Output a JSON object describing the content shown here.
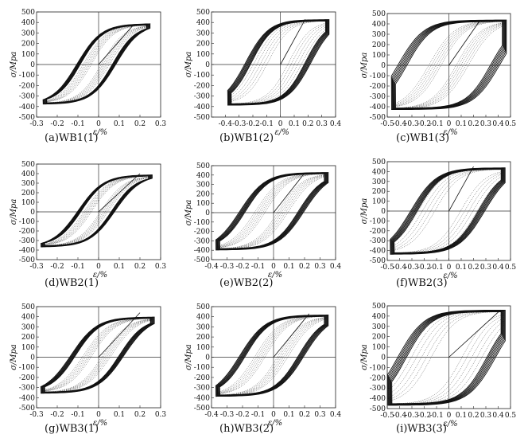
{
  "chart_data": [
    {
      "type": "line",
      "caption": "(a)WB1(1)",
      "xlabel": "ε/%",
      "ylabel": "σ/Mpa",
      "xlim": [
        -0.3,
        0.3
      ],
      "ylim": [
        -500,
        500
      ],
      "xticks": [
        -0.3,
        -0.2,
        -0.1,
        0,
        0.1,
        0.2,
        0.3
      ],
      "xtick_labels": [
        "-0.3",
        "-0.2",
        "-0.1",
        "0",
        "0.1",
        "0.2",
        "0.3"
      ],
      "yticks": [
        -500,
        -400,
        -300,
        -200,
        -100,
        0,
        100,
        200,
        300,
        400,
        500
      ],
      "ytick_labels": [
        "-500",
        "-400",
        "-300",
        "-200",
        "-100",
        "0",
        "100",
        "200",
        "300",
        "400",
        "500"
      ],
      "loop": {
        "xmin": -0.26,
        "xmax": 0.24,
        "ymin": -370,
        "ymax": 380,
        "width": 0.35
      },
      "skeleton": [
        [
          0,
          0
        ],
        [
          0.17,
          380
        ]
      ],
      "dotted_loop": {
        "width": 0.25
      }
    },
    {
      "type": "line",
      "caption": "(b)WB1(2)",
      "xlabel": "ε/%",
      "ylabel": "σ/Mpa",
      "xlim": [
        -0.5,
        0.4
      ],
      "ylim": [
        -500,
        500
      ],
      "xticks": [
        -0.4,
        -0.3,
        -0.2,
        -0.1,
        0,
        0.1,
        0.2,
        0.3,
        0.4
      ],
      "xtick_labels": [
        "-0.4",
        "-0.3",
        "-0.2",
        "-0.1",
        "0",
        "0.1",
        "0.2",
        "0.3",
        "0.4"
      ],
      "yticks": [
        -500,
        -400,
        -300,
        -200,
        -100,
        0,
        100,
        200,
        300,
        400,
        500
      ],
      "ytick_labels": [
        "-500",
        "-400",
        "-300",
        "-200",
        "-100",
        "0",
        "100",
        "200",
        "300",
        "400",
        "500"
      ],
      "loop": {
        "xmin": -0.37,
        "xmax": 0.34,
        "ymin": -380,
        "ymax": 420,
        "width": 0.62
      },
      "skeleton": [
        [
          0,
          0
        ],
        [
          0.18,
          430
        ]
      ],
      "dotted_loop": {
        "width": 0.55
      }
    },
    {
      "type": "line",
      "caption": "(c)WB1(3)",
      "xlabel": "ε/%",
      "ylabel": "σ/Mpa",
      "xlim": [
        -0.5,
        0.5
      ],
      "ylim": [
        -500,
        500
      ],
      "xticks": [
        -0.5,
        -0.4,
        -0.3,
        -0.2,
        -0.1,
        0,
        0.1,
        0.2,
        0.3,
        0.4,
        0.5
      ],
      "xtick_labels": [
        "-0.5",
        "-0.4",
        "-0.3",
        "-0.2",
        "-0.1",
        "0",
        "0.1",
        "0.2",
        "0.3",
        "0.4",
        "0.5"
      ],
      "yticks": [
        -500,
        -400,
        -300,
        -200,
        -100,
        0,
        100,
        200,
        300,
        400,
        500
      ],
      "ytick_labels": [
        "-500",
        "-400",
        "-300",
        "-200",
        "-100",
        "0",
        "100",
        "200",
        "300",
        "400",
        "500"
      ],
      "loop": {
        "xmin": -0.45,
        "xmax": 0.45,
        "ymin": -420,
        "ymax": 430,
        "width": 0.85
      },
      "skeleton": [
        [
          0,
          0
        ],
        [
          0.25,
          430
        ]
      ],
      "dotted_loop": {
        "width": 0.35
      }
    },
    {
      "type": "line",
      "caption": "(d)WB2(1)",
      "xlabel": "ε/%",
      "ylabel": "σ/Mpa",
      "xlim": [
        -0.3,
        0.3
      ],
      "ylim": [
        -500,
        500
      ],
      "xticks": [
        -0.3,
        -0.2,
        -0.1,
        0,
        0.1,
        0.2,
        0.3
      ],
      "xtick_labels": [
        "-0.3",
        "-0.2",
        "-0.1",
        "0",
        "0.1",
        "0.2",
        "0.3"
      ],
      "yticks": [
        -500,
        -400,
        -300,
        -200,
        -100,
        0,
        100,
        200,
        300,
        400,
        500
      ],
      "ytick_labels": [
        "-500",
        "-400",
        "-300",
        "-200",
        "-100",
        "0",
        "100",
        "200",
        "300",
        "400",
        "500"
      ],
      "loop": {
        "xmin": -0.27,
        "xmax": 0.25,
        "ymin": -360,
        "ymax": 380,
        "width": 0.32
      },
      "skeleton": [
        [
          0,
          0
        ],
        [
          0.2,
          400
        ]
      ],
      "dotted_loop": {
        "width": 0.22
      }
    },
    {
      "type": "line",
      "caption": "(e)WB2(2)",
      "xlabel": "ε/%",
      "ylabel": "σ/Mpa",
      "xlim": [
        -0.4,
        0.4
      ],
      "ylim": [
        -500,
        500
      ],
      "xticks": [
        -0.4,
        -0.3,
        -0.2,
        -0.1,
        0,
        0.1,
        0.2,
        0.3,
        0.4
      ],
      "xtick_labels": [
        "-0.4",
        "-0.3",
        "-0.2",
        "-0.1",
        "0",
        "0.1",
        "0.2",
        "0.3",
        "0.4"
      ],
      "yticks": [
        -500,
        -400,
        -300,
        -200,
        -100,
        0,
        100,
        200,
        300,
        400,
        500
      ],
      "ytick_labels": [
        "-500",
        "-400",
        "-300",
        "-200",
        "-100",
        "0",
        "100",
        "200",
        "300",
        "400",
        "500"
      ],
      "loop": {
        "xmin": -0.36,
        "xmax": 0.34,
        "ymin": -390,
        "ymax": 420,
        "width": 0.55
      },
      "skeleton": [
        [
          0,
          0
        ],
        [
          0.2,
          420
        ]
      ],
      "dotted_loop": {
        "width": 0.3
      }
    },
    {
      "type": "line",
      "caption": "(f)WB2(3)",
      "xlabel": "ε/%",
      "ylabel": "σ/Mpa",
      "xlim": [
        -0.5,
        0.5
      ],
      "ylim": [
        -500,
        500
      ],
      "xticks": [
        -0.5,
        -0.4,
        -0.3,
        -0.2,
        -0.1,
        0,
        0.1,
        0.2,
        0.3,
        0.4,
        0.5
      ],
      "xtick_labels": [
        "-0.5",
        "-0.4",
        "-0.3",
        "-0.2",
        "-0.1",
        "0",
        "0.1",
        "0.2",
        "0.3",
        "0.4",
        "0.5"
      ],
      "yticks": [
        -500,
        -400,
        -300,
        -200,
        -100,
        0,
        100,
        200,
        300,
        400,
        500
      ],
      "ytick_labels": [
        "-500",
        "-400",
        "-300",
        "-200",
        "-100",
        "0",
        "100",
        "200",
        "300",
        "400",
        "500"
      ],
      "loop": {
        "xmin": -0.46,
        "xmax": 0.44,
        "ymin": -430,
        "ymax": 430,
        "width": 0.62
      },
      "skeleton": [
        [
          0,
          0
        ],
        [
          0.2,
          450
        ]
      ],
      "dotted_loop": {
        "width": 0.6
      }
    },
    {
      "type": "line",
      "caption": "(g)WB3(1)",
      "xlabel": "ε/%",
      "ylabel": "σ/Mpa",
      "xlim": [
        -0.3,
        0.3
      ],
      "ylim": [
        -500,
        500
      ],
      "xticks": [
        -0.3,
        -0.2,
        -0.1,
        0,
        0.1,
        0.2,
        0.3
      ],
      "xtick_labels": [
        "-0.3",
        "-0.2",
        "-0.1",
        "0",
        "0.1",
        "0.2",
        "0.3"
      ],
      "yticks": [
        -500,
        -400,
        -300,
        -200,
        -100,
        0,
        100,
        200,
        300,
        400,
        500
      ],
      "ytick_labels": [
        "-500",
        "-400",
        "-300",
        "-200",
        "-100",
        "0",
        "100",
        "200",
        "300",
        "400",
        "500"
      ],
      "loop": {
        "xmin": -0.27,
        "xmax": 0.26,
        "ymin": -350,
        "ymax": 390,
        "width": 0.45
      },
      "skeleton": [
        [
          0,
          0
        ],
        [
          0.2,
          440
        ]
      ],
      "dotted_loop": {
        "width": 0.25
      }
    },
    {
      "type": "line",
      "caption": "(h)WB3(2)",
      "xlabel": "ε/%",
      "ylabel": "σ/Mpa",
      "xlim": [
        -0.4,
        0.4
      ],
      "ylim": [
        -500,
        500
      ],
      "xticks": [
        -0.4,
        -0.3,
        -0.2,
        -0.1,
        0,
        0.1,
        0.2,
        0.3,
        0.4
      ],
      "xtick_labels": [
        "-0.4",
        "-0.3",
        "-0.2",
        "-0.1",
        "0",
        "0.1",
        "0.2",
        "0.3",
        "0.4"
      ],
      "yticks": [
        -500,
        -400,
        -300,
        -200,
        -100,
        0,
        100,
        200,
        300,
        400,
        500
      ],
      "ytick_labels": [
        "-500",
        "-400",
        "-300",
        "-200",
        "-100",
        "0",
        "100",
        "200",
        "300",
        "400",
        "500"
      ],
      "loop": {
        "xmin": -0.36,
        "xmax": 0.34,
        "ymin": -380,
        "ymax": 410,
        "width": 0.55
      },
      "skeleton": [
        [
          0,
          0
        ],
        [
          0.23,
          430
        ]
      ],
      "dotted_loop": {
        "width": 0.3
      }
    },
    {
      "type": "line",
      "caption": "(i)WB3(3)",
      "xlabel": "ε/%",
      "ylabel": "σ/Mpa",
      "xlim": [
        -0.5,
        0.5
      ],
      "ylim": [
        -500,
        500
      ],
      "xticks": [
        -0.5,
        -0.4,
        -0.3,
        -0.2,
        -0.1,
        0,
        0.1,
        0.2,
        0.3,
        0.4,
        0.5
      ],
      "xtick_labels": [
        "-0.5",
        "-0.4",
        "-0.3",
        "-0.2",
        "-0.1",
        "0",
        "0.1",
        "0.2",
        "0.3",
        "0.4",
        "0.5"
      ],
      "yticks": [
        -500,
        -400,
        -300,
        -200,
        -100,
        0,
        100,
        200,
        300,
        400,
        500
      ],
      "ytick_labels": [
        "-500",
        "-400",
        "-300",
        "-200",
        "-100",
        "0",
        "100",
        "200",
        "300",
        "400",
        "500"
      ],
      "loop": {
        "xmin": -0.48,
        "xmax": 0.44,
        "ymin": -460,
        "ymax": 450,
        "width": 0.8
      },
      "skeleton": [
        [
          0,
          0
        ],
        [
          0.42,
          460
        ]
      ],
      "dotted_loop": {
        "width": 0.7
      }
    }
  ]
}
